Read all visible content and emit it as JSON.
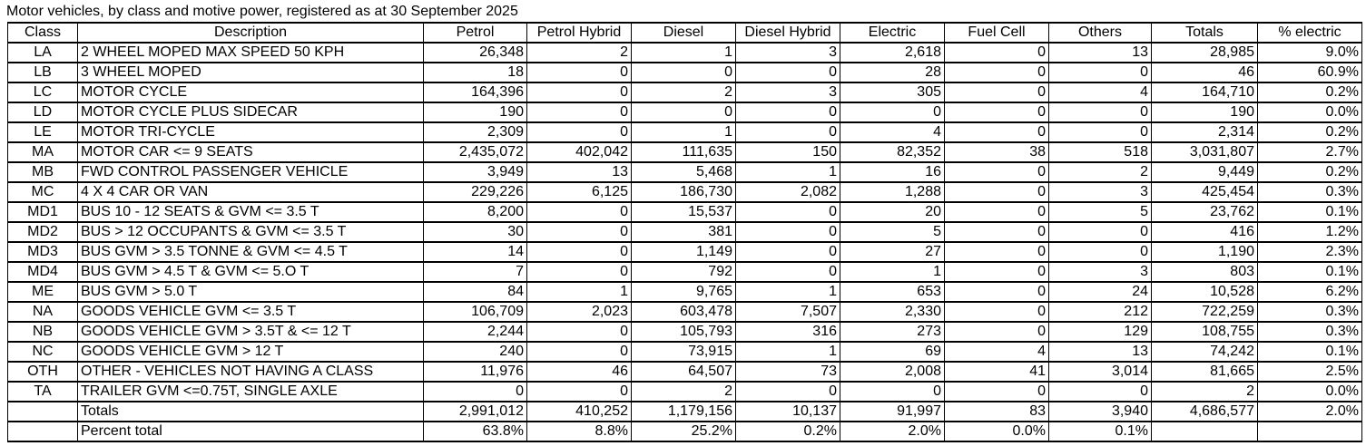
{
  "title": "Motor vehicles, by class and motive power, registered as at 30 September 2025",
  "table": {
    "columns": [
      "Class",
      "Description",
      "Petrol",
      "Petrol Hybrid",
      "Diesel",
      "Diesel Hybrid",
      "Electric",
      "Fuel Cell",
      "Others",
      "Totals",
      "% electric"
    ],
    "rows": [
      {
        "class": "LA",
        "description": "2 WHEEL MOPED MAX SPEED 50 KPH",
        "values": [
          "26,348",
          "2",
          "1",
          "3",
          "2,618",
          "0",
          "13",
          "28,985",
          "9.0%"
        ]
      },
      {
        "class": "LB",
        "description": "3 WHEEL MOPED",
        "values": [
          "18",
          "0",
          "0",
          "0",
          "28",
          "0",
          "0",
          "46",
          "60.9%"
        ]
      },
      {
        "class": "LC",
        "description": "MOTOR CYCLE",
        "values": [
          "164,396",
          "0",
          "2",
          "3",
          "305",
          "0",
          "4",
          "164,710",
          "0.2%"
        ]
      },
      {
        "class": "LD",
        "description": "MOTOR CYCLE PLUS SIDECAR",
        "values": [
          "190",
          "0",
          "0",
          "0",
          "0",
          "0",
          "0",
          "190",
          "0.0%"
        ]
      },
      {
        "class": "LE",
        "description": "MOTOR TRI-CYCLE",
        "values": [
          "2,309",
          "0",
          "1",
          "0",
          "4",
          "0",
          "0",
          "2,314",
          "0.2%"
        ]
      },
      {
        "class": "MA",
        "description": "MOTOR CAR <= 9 SEATS",
        "values": [
          "2,435,072",
          "402,042",
          "111,635",
          "150",
          "82,352",
          "38",
          "518",
          "3,031,807",
          "2.7%"
        ]
      },
      {
        "class": "MB",
        "description": "FWD CONTROL PASSENGER VEHICLE",
        "values": [
          "3,949",
          "13",
          "5,468",
          "1",
          "16",
          "0",
          "2",
          "9,449",
          "0.2%"
        ]
      },
      {
        "class": "MC",
        "description": "4 X 4 CAR OR VAN",
        "values": [
          "229,226",
          "6,125",
          "186,730",
          "2,082",
          "1,288",
          "0",
          "3",
          "425,454",
          "0.3%"
        ]
      },
      {
        "class": "MD1",
        "description": "BUS 10 - 12 SEATS & GVM <= 3.5 T",
        "values": [
          "8,200",
          "0",
          "15,537",
          "0",
          "20",
          "0",
          "5",
          "23,762",
          "0.1%"
        ]
      },
      {
        "class": "MD2",
        "description": "BUS > 12 OCCUPANTS & GVM <= 3.5 T",
        "values": [
          "30",
          "0",
          "381",
          "0",
          "5",
          "0",
          "0",
          "416",
          "1.2%"
        ]
      },
      {
        "class": "MD3",
        "description": "BUS GVM > 3.5 TONNE & GVM <= 4.5 T",
        "values": [
          "14",
          "0",
          "1,149",
          "0",
          "27",
          "0",
          "0",
          "1,190",
          "2.3%"
        ]
      },
      {
        "class": "MD4",
        "description": "BUS GVM > 4.5 T & GVM <= 5.O T",
        "values": [
          "7",
          "0",
          "792",
          "0",
          "1",
          "0",
          "3",
          "803",
          "0.1%"
        ]
      },
      {
        "class": "ME",
        "description": "BUS GVM > 5.0 T",
        "values": [
          "84",
          "1",
          "9,765",
          "1",
          "653",
          "0",
          "24",
          "10,528",
          "6.2%"
        ]
      },
      {
        "class": "NA",
        "description": "GOODS VEHICLE GVM <= 3.5 T",
        "values": [
          "106,709",
          "2,023",
          "603,478",
          "7,507",
          "2,330",
          "0",
          "212",
          "722,259",
          "0.3%"
        ]
      },
      {
        "class": "NB",
        "description": "GOODS VEHICLE GVM > 3.5T & <= 12 T",
        "values": [
          "2,244",
          "0",
          "105,793",
          "316",
          "273",
          "0",
          "129",
          "108,755",
          "0.3%"
        ]
      },
      {
        "class": "NC",
        "description": "GOODS VEHICLE GVM > 12 T",
        "values": [
          "240",
          "0",
          "73,915",
          "1",
          "69",
          "4",
          "13",
          "74,242",
          "0.1%"
        ]
      },
      {
        "class": "OTH",
        "description": "OTHER - VEHICLES NOT HAVING A CLASS",
        "values": [
          "11,976",
          "46",
          "64,507",
          "73",
          "2,008",
          "41",
          "3,014",
          "81,665",
          "2.5%"
        ]
      },
      {
        "class": "TA",
        "description": "TRAILER GVM <=0.75T, SINGLE AXLE",
        "values": [
          "0",
          "0",
          "2",
          "0",
          "0",
          "0",
          "0",
          "2",
          "0.0%"
        ]
      }
    ],
    "totals_row": {
      "label": "Totals",
      "values": [
        "2,991,012",
        "410,252",
        "1,179,156",
        "10,137",
        "91,997",
        "83",
        "3,940",
        "4,686,577",
        "2.0%"
      ]
    },
    "percent_row": {
      "label": "Percent total",
      "values": [
        "63.8%",
        "8.8%",
        "25.2%",
        "0.2%",
        "2.0%",
        "0.0%",
        "0.1%"
      ]
    }
  }
}
